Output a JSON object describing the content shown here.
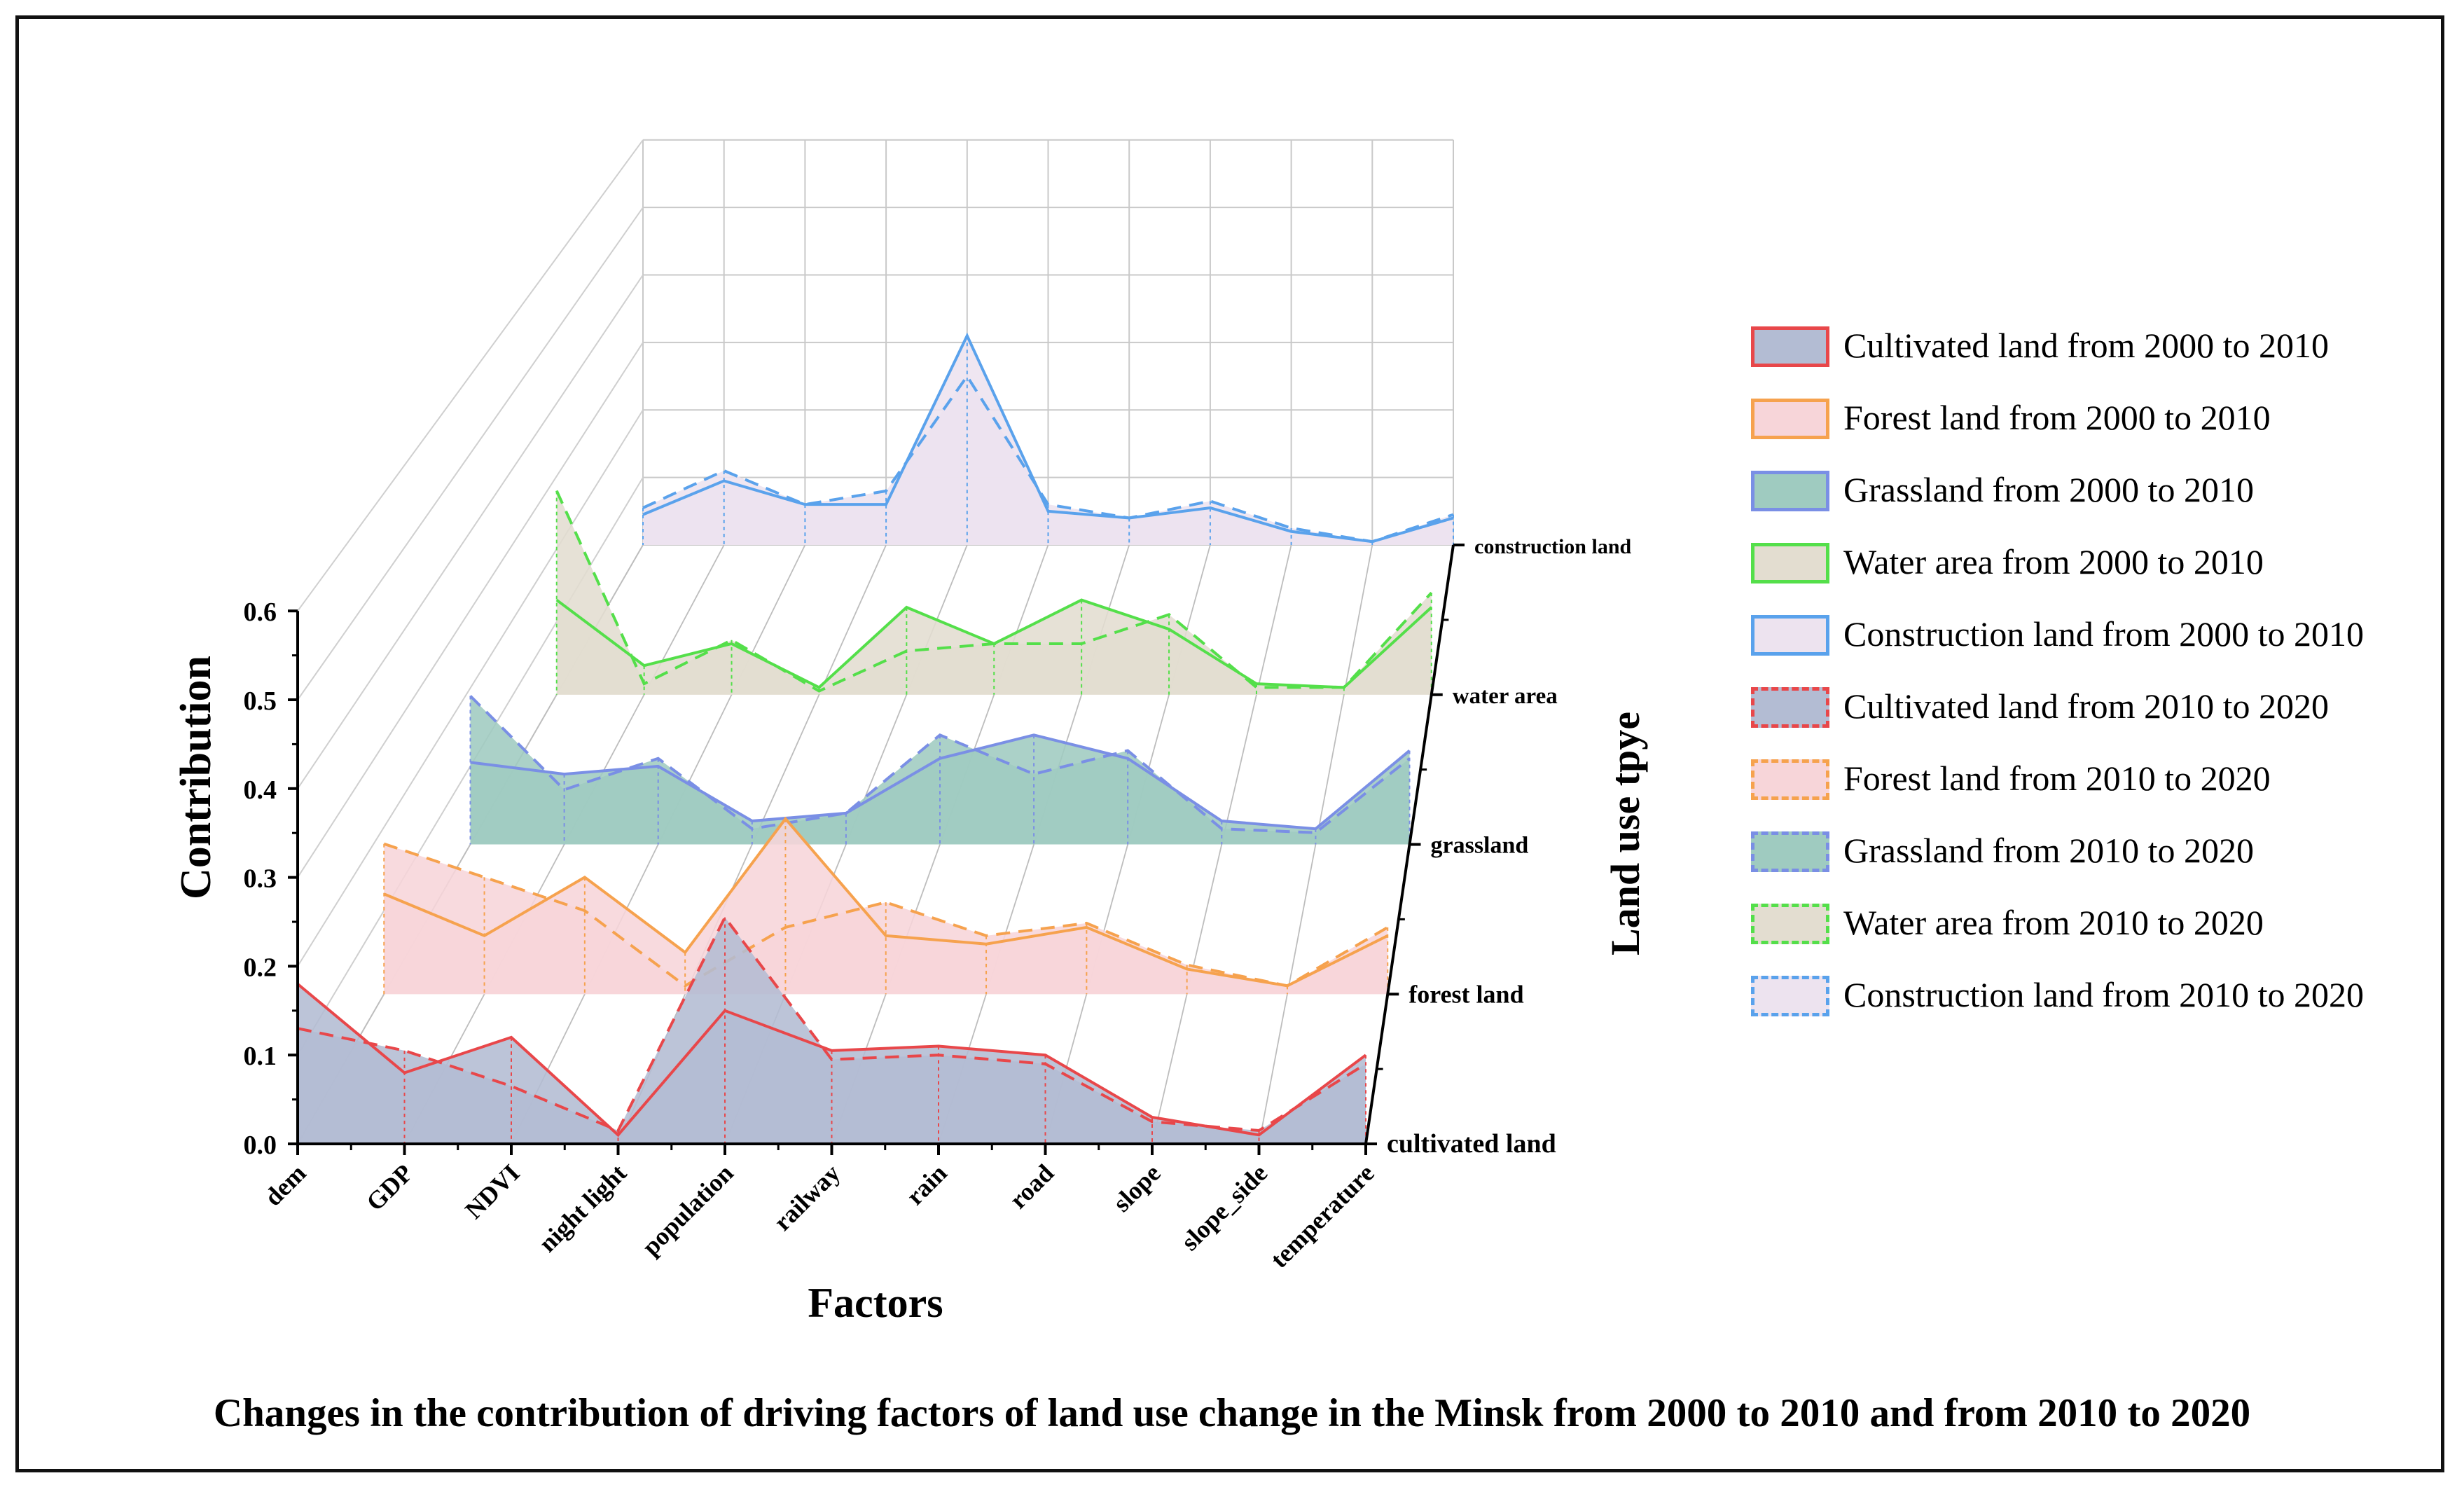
{
  "caption": "Changes in the contribution of driving factors of land use change in the Minsk from 2000 to 2010 and from 2010 to 2020",
  "chart_data": {
    "type": "3d-waterfall-line-area",
    "title": "",
    "xlabel": "Factors",
    "ylabel": "Contribution",
    "zlabel": "Land use tpye",
    "ylim": [
      0,
      0.6
    ],
    "y_ticks": [
      "0.0",
      "0.1",
      "0.2",
      "0.3",
      "0.4",
      "0.5",
      "0.6"
    ],
    "categories": [
      "dem",
      "GDP",
      "NDVI",
      "night light",
      "population",
      "railway",
      "rain",
      "road",
      "slope",
      "slope_side",
      "temperature"
    ],
    "land_use_types": [
      "cultivated land",
      "forest land",
      "grassland",
      "water area",
      "construction land"
    ],
    "series": [
      {
        "name": "Cultivated land from 2000 to 2010",
        "land_use": "cultivated land",
        "period": "2000-2010",
        "values": [
          0.18,
          0.08,
          0.12,
          0.01,
          0.15,
          0.105,
          0.11,
          0.1,
          0.03,
          0.01,
          0.1
        ]
      },
      {
        "name": "Forest land from 2000 to 2010",
        "land_use": "forest land",
        "period": "2000-2010",
        "values": [
          0.12,
          0.07,
          0.14,
          0.05,
          0.21,
          0.07,
          0.06,
          0.08,
          0.03,
          0.01,
          0.07
        ]
      },
      {
        "name": "Grassland from 2000 to 2010",
        "land_use": "grassland",
        "period": "2000-2010",
        "values": [
          0.105,
          0.09,
          0.1,
          0.03,
          0.04,
          0.11,
          0.14,
          0.11,
          0.03,
          0.02,
          0.12
        ]
      },
      {
        "name": "Water area from 2000 to 2010",
        "land_use": "water area",
        "period": "2000-2010",
        "values": [
          0.13,
          0.04,
          0.07,
          0.01,
          0.12,
          0.07,
          0.13,
          0.09,
          0.015,
          0.01,
          0.12
        ]
      },
      {
        "name": "Construction land from 2000 to 2010",
        "land_use": "construction land",
        "period": "2000-2010",
        "values": [
          0.045,
          0.095,
          0.06,
          0.06,
          0.31,
          0.05,
          0.04,
          0.055,
          0.02,
          0.005,
          0.04
        ]
      },
      {
        "name": "Cultivated land from 2010 to 2020",
        "land_use": "cultivated land",
        "period": "2010-2020",
        "values": [
          0.13,
          0.105,
          0.065,
          0.015,
          0.255,
          0.095,
          0.1,
          0.09,
          0.025,
          0.015,
          0.09
        ]
      },
      {
        "name": "Forest land from 2010 to 2020",
        "land_use": "forest land",
        "period": "2010-2020",
        "values": [
          0.18,
          0.14,
          0.1,
          0.01,
          0.08,
          0.11,
          0.07,
          0.085,
          0.035,
          0.01,
          0.08
        ]
      },
      {
        "name": "Grassland from 2010 to 2020",
        "land_use": "grassland",
        "period": "2010-2020",
        "values": [
          0.19,
          0.07,
          0.11,
          0.02,
          0.04,
          0.14,
          0.09,
          0.12,
          0.02,
          0.015,
          0.11
        ]
      },
      {
        "name": "Water area from 2010 to 2020",
        "land_use": "water area",
        "period": "2010-2020",
        "values": [
          0.28,
          0.015,
          0.075,
          0.005,
          0.06,
          0.07,
          0.07,
          0.11,
          0.01,
          0.01,
          0.14
        ]
      },
      {
        "name": "Construction land from 2010 to 2020",
        "land_use": "construction land",
        "period": "2010-2020",
        "values": [
          0.055,
          0.11,
          0.06,
          0.08,
          0.25,
          0.06,
          0.04,
          0.065,
          0.025,
          0.005,
          0.045
        ]
      }
    ],
    "legend_position": "right"
  },
  "colors": {
    "cultivated": {
      "line": "#e8474a",
      "fill": "#b3bcd3"
    },
    "forest": {
      "line": "#f6a24e",
      "fill": "#f7d5d9"
    },
    "grassland": {
      "line": "#7a8fe5",
      "fill": "#9fcbc0"
    },
    "water": {
      "line": "#54df4a",
      "fill": "#e3ddd0"
    },
    "construction": {
      "line": "#5aa2ec",
      "fill": "#ede3ef"
    }
  }
}
